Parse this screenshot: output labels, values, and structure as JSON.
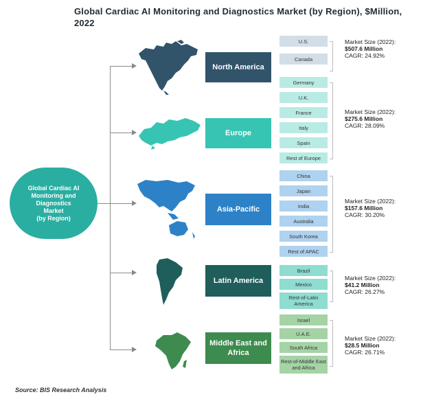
{
  "title": "Global Cardiac AI Monitoring and Diagnostics Market (by Region), $Million, 2022",
  "root_label": [
    "Global Cardiac AI",
    "Monitoring and",
    "Diagnostics",
    "Market",
    "(by Region)"
  ],
  "colors": {
    "north_america": "#31546b",
    "north_america_light": "#d3dde6",
    "europe": "#37c4b3",
    "europe_light": "#b8ebe4",
    "asia_pacific": "#2d82c7",
    "asia_pacific_light": "#aed2ef",
    "latin_america": "#1f5e5b",
    "latin_america_light": "#8fdcd0",
    "middle_east_africa": "#3d8b4e",
    "middle_east_africa_light": "#a5d3a6",
    "root": "#2aaea1"
  },
  "regions": [
    {
      "name": "North America",
      "countries": [
        "U.S.",
        "Canada"
      ],
      "size_label": "Market Size (2022):",
      "size_value": "$507.6 Million",
      "cagr": "CAGR: 24.92%"
    },
    {
      "name": "Europe",
      "countries": [
        "Germany",
        "U.K.",
        "France",
        "Italy",
        "Spain",
        "Rest of Europe"
      ],
      "size_label": "Market Size (2022):",
      "size_value": "$275.6 Million",
      "cagr": "CAGR: 28.09%"
    },
    {
      "name": "Asia-Pacific",
      "countries": [
        "China",
        "Japan",
        "India",
        "Australia",
        "South Korea",
        "Rest of APAC"
      ],
      "size_label": "Market Size (2022):",
      "size_value": "$157.6 Million",
      "cagr": "CAGR: 30.20%"
    },
    {
      "name": "Latin America",
      "countries": [
        "Brazil",
        "Mexico",
        "Rest-of-Latin America"
      ],
      "size_label": "Market Size (2022):",
      "size_value": "$41.2 Million",
      "cagr": "CAGR: 26.27%"
    },
    {
      "name": "Middle East and Africa",
      "countries": [
        "Israel",
        "U.A.E.",
        "South Africa",
        "Rest-of-Middle East and Africa"
      ],
      "size_label": "Market Size (2022):",
      "size_value": "$28.5 Million",
      "cagr": "CAGR: 26.71%"
    }
  ],
  "source": "Source: BIS Research Analysis"
}
